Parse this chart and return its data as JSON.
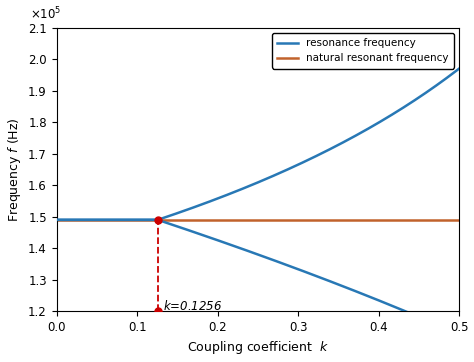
{
  "f0": 149000.0,
  "k_split": 0.1256,
  "k_min": 0.0,
  "k_max": 0.5,
  "ylim": [
    120000.0,
    210000.0
  ],
  "xlim": [
    0.0,
    0.5
  ],
  "blue_color": "#2878b5",
  "orange_color": "#c1622c",
  "red_color": "#cc0000",
  "xlabel": "Coupling coefficient  $k$",
  "ylabel": "Frequency $f$ (Hz)",
  "legend_resonance": "resonance frequency",
  "legend_natural": "natural resonant frequency",
  "annotation_text": "$k$=0.1256",
  "ytick_scale": 100000.0,
  "yticks": [
    1.2,
    1.3,
    1.4,
    1.5,
    1.6,
    1.7,
    1.8,
    1.9,
    2.0,
    2.1
  ],
  "xticks": [
    0,
    0.1,
    0.2,
    0.3,
    0.4,
    0.5
  ],
  "linewidth": 1.8
}
